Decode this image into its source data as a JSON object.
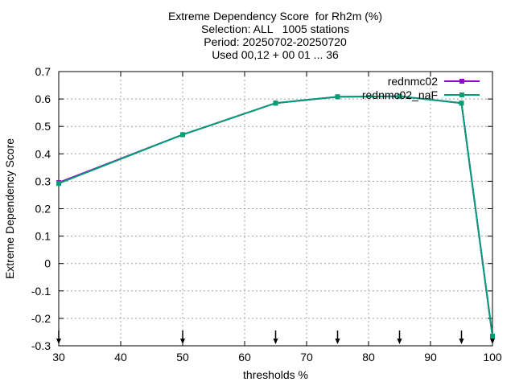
{
  "chart_data": {
    "type": "line",
    "title_lines": [
      "Extreme Dependency Score  for Rh2m (%)",
      "Selection: ALL   1005 stations",
      "Period: 20250702-20250720",
      "Used 00,12 + 00 01 ... 36"
    ],
    "xlabel": "thresholds %",
    "ylabel": "Extreme Dependency Score",
    "xlim": [
      30,
      100
    ],
    "ylim": [
      -0.3,
      0.7
    ],
    "xticks": [
      30,
      40,
      50,
      60,
      70,
      80,
      90,
      100
    ],
    "yticks": [
      -0.3,
      -0.2,
      -0.1,
      0,
      0.1,
      0.2,
      0.3,
      0.4,
      0.5,
      0.6,
      0.7
    ],
    "ytick_labels": [
      "-0.3",
      "-0.2",
      "-0.1",
      "0",
      "0.1",
      "0.2",
      "0.3",
      "0.4",
      "0.5",
      "0.6",
      "0.7"
    ],
    "grid": true,
    "legend_position": "top-right",
    "series": [
      {
        "name": "rednmc02",
        "color": "#9400d3",
        "x": [
          30,
          50,
          65,
          75,
          85,
          95,
          100
        ],
        "y": [
          0.295,
          0.47,
          0.585,
          0.608,
          0.61,
          0.585,
          -0.265
        ]
      },
      {
        "name": "rednmc02_naF",
        "color": "#009e73",
        "x": [
          30,
          50,
          65,
          75,
          85,
          95,
          100
        ],
        "y": [
          0.292,
          0.47,
          0.585,
          0.608,
          0.61,
          0.585,
          -0.265
        ]
      }
    ],
    "arrow_markers_x": [
      30,
      50,
      65,
      75,
      85,
      95,
      100
    ]
  }
}
